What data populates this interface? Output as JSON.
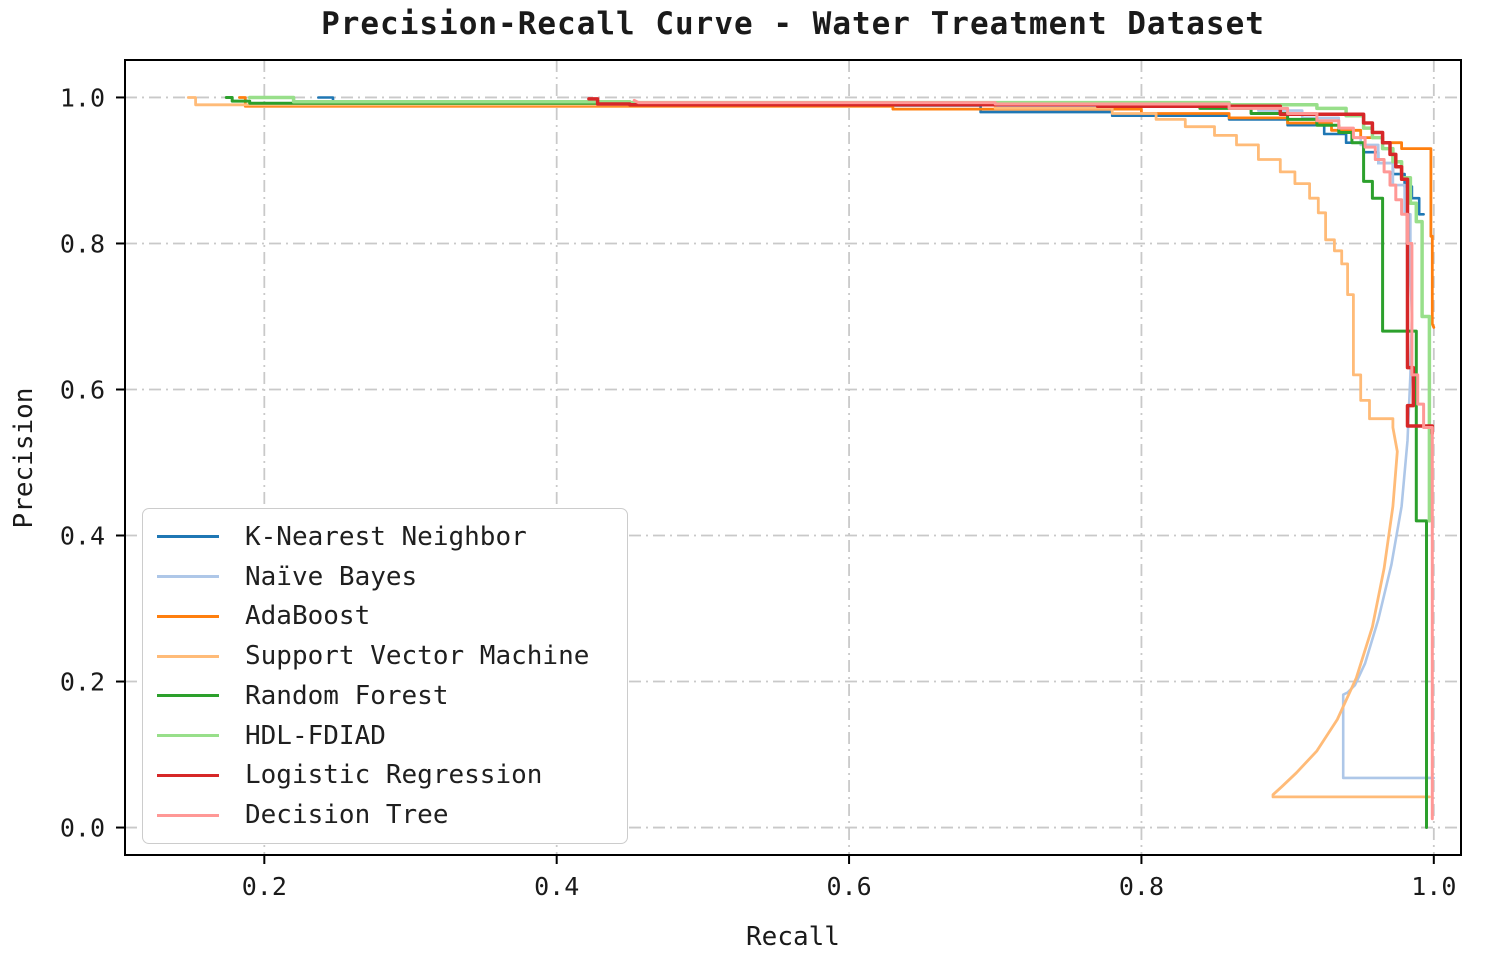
{
  "figure": {
    "title": "Precision-Recall Curve - Water Treatment Dataset",
    "xlabel": "Recall",
    "ylabel": "Precision"
  },
  "chart_data": {
    "type": "line",
    "title": "Precision-Recall Curve - Water Treatment Dataset",
    "xlabel": "Recall",
    "ylabel": "Precision",
    "xlim": [
      0.1047,
      1.0186
    ],
    "ylim": [
      -0.0376,
      1.0513
    ],
    "xticks": [
      0.2,
      0.4,
      0.6,
      0.8,
      1.0
    ],
    "xtick_labels": [
      "0.2",
      "0.4",
      "0.6",
      "0.8",
      "1.0"
    ],
    "yticks": [
      0.0,
      0.2,
      0.4,
      0.6,
      0.8,
      1.0
    ],
    "ytick_labels": [
      "0.0",
      "0.2",
      "0.4",
      "0.6",
      "0.8",
      "1.0"
    ],
    "grid": {
      "on": true,
      "linestyle": "dashdot",
      "color": "#c9c9c9"
    },
    "legend_position": "lower left",
    "axes_color": "#000000",
    "series": [
      {
        "name": "K-Nearest Neighbor",
        "color": "#1f77b4",
        "width": 2.6,
        "points": [
          [
            0.237,
            1.0
          ],
          [
            0.247,
            1.0
          ],
          [
            0.247,
            0.99
          ],
          [
            0.33,
            0.99
          ],
          [
            0.33,
            0.989
          ],
          [
            0.69,
            0.989
          ],
          [
            0.69,
            0.98
          ],
          [
            0.78,
            0.98
          ],
          [
            0.78,
            0.975
          ],
          [
            0.86,
            0.975
          ],
          [
            0.86,
            0.97
          ],
          [
            0.9,
            0.97
          ],
          [
            0.9,
            0.962
          ],
          [
            0.925,
            0.962
          ],
          [
            0.925,
            0.95
          ],
          [
            0.94,
            0.95
          ],
          [
            0.94,
            0.938
          ],
          [
            0.952,
            0.938
          ],
          [
            0.952,
            0.925
          ],
          [
            0.962,
            0.925
          ],
          [
            0.962,
            0.91
          ],
          [
            0.972,
            0.91
          ],
          [
            0.972,
            0.895
          ],
          [
            0.98,
            0.895
          ],
          [
            0.98,
            0.878
          ],
          [
            0.985,
            0.878
          ],
          [
            0.985,
            0.862
          ],
          [
            0.99,
            0.862
          ],
          [
            0.99,
            0.84
          ],
          [
            0.993,
            0.84
          ]
        ]
      },
      {
        "name": "Naïve Bayes",
        "color": "#aec7e8",
        "width": 2.6,
        "points": [
          [
            0.31,
            0.993
          ],
          [
            0.7,
            0.993
          ],
          [
            0.7,
            0.988
          ],
          [
            0.88,
            0.988
          ],
          [
            0.88,
            0.982
          ],
          [
            0.91,
            0.982
          ],
          [
            0.91,
            0.972
          ],
          [
            0.935,
            0.972
          ],
          [
            0.935,
            0.955
          ],
          [
            0.95,
            0.955
          ],
          [
            0.95,
            0.935
          ],
          [
            0.962,
            0.935
          ],
          [
            0.962,
            0.91
          ],
          [
            0.972,
            0.91
          ],
          [
            0.972,
            0.88
          ],
          [
            0.98,
            0.88
          ],
          [
            0.98,
            0.84
          ],
          [
            0.984,
            0.84
          ],
          [
            0.984,
            0.76
          ],
          [
            0.985,
            0.7
          ],
          [
            0.984,
            0.62
          ],
          [
            0.982,
            0.53
          ],
          [
            0.978,
            0.44
          ],
          [
            0.971,
            0.36
          ],
          [
            0.962,
            0.285
          ],
          [
            0.953,
            0.225
          ],
          [
            0.946,
            0.195
          ],
          [
            0.941,
            0.185
          ],
          [
            0.938,
            0.182
          ],
          [
            0.938,
            0.068
          ],
          [
            1.0,
            0.068
          ]
        ]
      },
      {
        "name": "AdaBoost",
        "color": "#ff7f0e",
        "width": 2.8,
        "points": [
          [
            0.183,
            1.0
          ],
          [
            0.187,
            1.0
          ],
          [
            0.187,
            0.988
          ],
          [
            0.63,
            0.988
          ],
          [
            0.63,
            0.984
          ],
          [
            0.8,
            0.984
          ],
          [
            0.8,
            0.978
          ],
          [
            0.86,
            0.978
          ],
          [
            0.86,
            0.972
          ],
          [
            0.9,
            0.972
          ],
          [
            0.9,
            0.965
          ],
          [
            0.93,
            0.965
          ],
          [
            0.93,
            0.955
          ],
          [
            0.95,
            0.955
          ],
          [
            0.95,
            0.945
          ],
          [
            0.965,
            0.945
          ],
          [
            0.965,
            0.938
          ],
          [
            0.978,
            0.938
          ],
          [
            0.978,
            0.93
          ],
          [
            0.998,
            0.93
          ],
          [
            0.998,
            0.81
          ],
          [
            0.999,
            0.81
          ],
          [
            0.999,
            0.69
          ],
          [
            1.0,
            0.685
          ]
        ]
      },
      {
        "name": "Support Vector Machine",
        "color": "#ffbb78",
        "width": 2.8,
        "points": [
          [
            0.148,
            1.0
          ],
          [
            0.153,
            1.0
          ],
          [
            0.153,
            0.99
          ],
          [
            0.7,
            0.99
          ],
          [
            0.7,
            0.985
          ],
          [
            0.78,
            0.985
          ],
          [
            0.78,
            0.978
          ],
          [
            0.81,
            0.978
          ],
          [
            0.81,
            0.97
          ],
          [
            0.83,
            0.97
          ],
          [
            0.83,
            0.96
          ],
          [
            0.85,
            0.96
          ],
          [
            0.85,
            0.948
          ],
          [
            0.865,
            0.948
          ],
          [
            0.865,
            0.935
          ],
          [
            0.88,
            0.935
          ],
          [
            0.88,
            0.915
          ],
          [
            0.895,
            0.915
          ],
          [
            0.895,
            0.898
          ],
          [
            0.905,
            0.898
          ],
          [
            0.905,
            0.882
          ],
          [
            0.915,
            0.882
          ],
          [
            0.915,
            0.862
          ],
          [
            0.921,
            0.862
          ],
          [
            0.921,
            0.842
          ],
          [
            0.926,
            0.842
          ],
          [
            0.926,
            0.805
          ],
          [
            0.932,
            0.805
          ],
          [
            0.932,
            0.79
          ],
          [
            0.937,
            0.79
          ],
          [
            0.937,
            0.772
          ],
          [
            0.941,
            0.772
          ],
          [
            0.941,
            0.73
          ],
          [
            0.945,
            0.73
          ],
          [
            0.945,
            0.62
          ],
          [
            0.95,
            0.62
          ],
          [
            0.95,
            0.585
          ],
          [
            0.956,
            0.585
          ],
          [
            0.956,
            0.56
          ],
          [
            0.972,
            0.56
          ],
          [
            0.972,
            0.548
          ],
          [
            0.975,
            0.515
          ],
          [
            0.972,
            0.44
          ],
          [
            0.966,
            0.355
          ],
          [
            0.958,
            0.275
          ],
          [
            0.947,
            0.205
          ],
          [
            0.934,
            0.148
          ],
          [
            0.92,
            0.105
          ],
          [
            0.906,
            0.075
          ],
          [
            0.896,
            0.056
          ],
          [
            0.89,
            0.045
          ],
          [
            0.89,
            0.042
          ],
          [
            0.997,
            0.042
          ]
        ]
      },
      {
        "name": "Random Forest",
        "color": "#2ca02c",
        "width": 3.0,
        "points": [
          [
            0.174,
            1.0
          ],
          [
            0.178,
            1.0
          ],
          [
            0.178,
            0.995
          ],
          [
            0.19,
            0.995
          ],
          [
            0.19,
            0.992
          ],
          [
            0.45,
            0.992
          ],
          [
            0.45,
            0.99
          ],
          [
            0.84,
            0.99
          ],
          [
            0.84,
            0.985
          ],
          [
            0.875,
            0.985
          ],
          [
            0.875,
            0.978
          ],
          [
            0.9,
            0.978
          ],
          [
            0.9,
            0.97
          ],
          [
            0.92,
            0.97
          ],
          [
            0.92,
            0.962
          ],
          [
            0.935,
            0.962
          ],
          [
            0.935,
            0.952
          ],
          [
            0.944,
            0.952
          ],
          [
            0.944,
            0.938
          ],
          [
            0.952,
            0.938
          ],
          [
            0.952,
            0.885
          ],
          [
            0.958,
            0.885
          ],
          [
            0.958,
            0.862
          ],
          [
            0.965,
            0.862
          ],
          [
            0.965,
            0.68
          ],
          [
            0.988,
            0.68
          ],
          [
            0.988,
            0.42
          ],
          [
            0.995,
            0.42
          ],
          [
            0.995,
            0.0
          ]
        ]
      },
      {
        "name": "HDL-FDIAD",
        "color": "#98df8a",
        "width": 3.5,
        "points": [
          [
            0.19,
            1.0
          ],
          [
            0.22,
            1.0
          ],
          [
            0.22,
            0.994
          ],
          [
            0.45,
            0.994
          ],
          [
            0.45,
            0.993
          ],
          [
            0.86,
            0.993
          ],
          [
            0.86,
            0.99
          ],
          [
            0.92,
            0.99
          ],
          [
            0.92,
            0.985
          ],
          [
            0.94,
            0.985
          ],
          [
            0.94,
            0.975
          ],
          [
            0.952,
            0.975
          ],
          [
            0.952,
            0.958
          ],
          [
            0.958,
            0.958
          ],
          [
            0.958,
            0.945
          ],
          [
            0.965,
            0.945
          ],
          [
            0.965,
            0.93
          ],
          [
            0.972,
            0.93
          ],
          [
            0.972,
            0.912
          ],
          [
            0.978,
            0.912
          ],
          [
            0.978,
            0.89
          ],
          [
            0.984,
            0.89
          ],
          [
            0.984,
            0.855
          ],
          [
            0.988,
            0.855
          ],
          [
            0.988,
            0.83
          ],
          [
            0.992,
            0.83
          ],
          [
            0.992,
            0.7
          ],
          [
            0.997,
            0.7
          ],
          [
            0.997,
            0.42
          ]
        ]
      },
      {
        "name": "Logistic Regression",
        "color": "#d62728",
        "width": 3.5,
        "points": [
          [
            0.422,
            0.998
          ],
          [
            0.428,
            0.998
          ],
          [
            0.428,
            0.991
          ],
          [
            0.45,
            0.991
          ],
          [
            0.45,
            0.99
          ],
          [
            0.77,
            0.99
          ],
          [
            0.77,
            0.988
          ],
          [
            0.895,
            0.988
          ],
          [
            0.895,
            0.977
          ],
          [
            0.952,
            0.977
          ],
          [
            0.952,
            0.965
          ],
          [
            0.958,
            0.965
          ],
          [
            0.958,
            0.952
          ],
          [
            0.965,
            0.952
          ],
          [
            0.965,
            0.938
          ],
          [
            0.97,
            0.938
          ],
          [
            0.97,
            0.922
          ],
          [
            0.974,
            0.922
          ],
          [
            0.974,
            0.905
          ],
          [
            0.978,
            0.905
          ],
          [
            0.978,
            0.888
          ],
          [
            0.982,
            0.888
          ],
          [
            0.982,
            0.63
          ],
          [
            0.986,
            0.63
          ],
          [
            0.986,
            0.578
          ],
          [
            0.982,
            0.578
          ],
          [
            0.982,
            0.55
          ],
          [
            0.999,
            0.55
          ],
          [
            0.999,
            0.54
          ]
        ]
      },
      {
        "name": "Decision Tree",
        "color": "#ff9896",
        "width": 3.0,
        "points": [
          [
            0.453,
            0.996
          ],
          [
            0.456,
            0.993
          ],
          [
            0.7,
            0.993
          ],
          [
            0.7,
            0.991
          ],
          [
            0.86,
            0.991
          ],
          [
            0.86,
            0.985
          ],
          [
            0.9,
            0.985
          ],
          [
            0.9,
            0.978
          ],
          [
            0.92,
            0.978
          ],
          [
            0.92,
            0.968
          ],
          [
            0.935,
            0.968
          ],
          [
            0.935,
            0.958
          ],
          [
            0.945,
            0.958
          ],
          [
            0.945,
            0.945
          ],
          [
            0.953,
            0.945
          ],
          [
            0.953,
            0.932
          ],
          [
            0.96,
            0.932
          ],
          [
            0.96,
            0.915
          ],
          [
            0.966,
            0.915
          ],
          [
            0.966,
            0.898
          ],
          [
            0.97,
            0.898
          ],
          [
            0.97,
            0.88
          ],
          [
            0.974,
            0.88
          ],
          [
            0.974,
            0.86
          ],
          [
            0.978,
            0.86
          ],
          [
            0.978,
            0.84
          ],
          [
            0.982,
            0.84
          ],
          [
            0.982,
            0.8
          ],
          [
            0.985,
            0.8
          ],
          [
            0.985,
            0.62
          ],
          [
            0.989,
            0.62
          ],
          [
            0.989,
            0.58
          ],
          [
            0.993,
            0.58
          ],
          [
            0.993,
            0.548
          ],
          [
            0.999,
            0.548
          ],
          [
            0.999,
            0.012
          ]
        ]
      }
    ]
  }
}
